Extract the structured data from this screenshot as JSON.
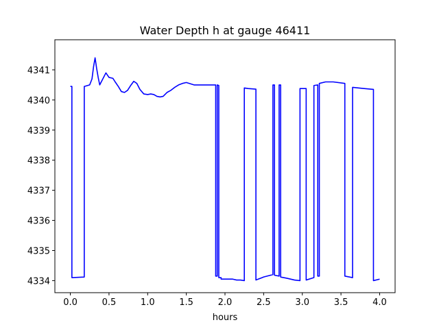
{
  "chart_data": {
    "type": "line",
    "title": "Water Depth h at gauge 46411",
    "xlabel": "hours",
    "ylabel": "",
    "xlim": [
      -0.2,
      4.2
    ],
    "ylim": [
      4333.6,
      4342.0
    ],
    "xticks": [
      0.0,
      0.5,
      1.0,
      1.5,
      2.0,
      2.5,
      3.0,
      3.5,
      4.0
    ],
    "xtick_labels": [
      "0.0",
      "0.5",
      "1.0",
      "1.5",
      "2.0",
      "2.5",
      "3.0",
      "3.5",
      "4.0"
    ],
    "yticks": [
      4334,
      4335,
      4336,
      4337,
      4338,
      4339,
      4340,
      4341
    ],
    "ytick_labels": [
      "4334",
      "4335",
      "4336",
      "4337",
      "4338",
      "4339",
      "4340",
      "4341"
    ],
    "grid": false,
    "series": [
      {
        "color": "#0000ff",
        "x": [
          0.0,
          0.02,
          0.02,
          0.18,
          0.18,
          0.25,
          0.28,
          0.3,
          0.32,
          0.34,
          0.36,
          0.38,
          0.42,
          0.46,
          0.5,
          0.55,
          0.58,
          0.62,
          0.66,
          0.7,
          0.74,
          0.78,
          0.82,
          0.86,
          0.9,
          0.95,
          1.0,
          1.04,
          1.08,
          1.12,
          1.16,
          1.2,
          1.25,
          1.3,
          1.35,
          1.4,
          1.45,
          1.5,
          1.6,
          1.7,
          1.8,
          1.88,
          1.88,
          1.9,
          1.9,
          1.92,
          1.92,
          1.95,
          1.95,
          2.05,
          2.1,
          2.15,
          2.2,
          2.25,
          2.25,
          2.3,
          2.4,
          2.4,
          2.5,
          2.62,
          2.62,
          2.64,
          2.64,
          2.7,
          2.7,
          2.72,
          2.72,
          2.8,
          2.9,
          2.97,
          2.97,
          3.05,
          3.05,
          3.15,
          3.15,
          3.2,
          3.2,
          3.22,
          3.22,
          3.3,
          3.4,
          3.55,
          3.55,
          3.65,
          3.65,
          3.8,
          3.92,
          3.92,
          4.0
        ],
        "y": [
          4340.45,
          4340.45,
          4334.1,
          4334.12,
          4340.45,
          4340.5,
          4340.7,
          4341.1,
          4341.4,
          4341.05,
          4340.75,
          4340.5,
          4340.7,
          4340.9,
          4340.75,
          4340.72,
          4340.6,
          4340.45,
          4340.28,
          4340.25,
          4340.32,
          4340.48,
          4340.62,
          4340.55,
          4340.35,
          4340.2,
          4340.18,
          4340.2,
          4340.18,
          4340.12,
          4340.1,
          4340.12,
          4340.25,
          4340.32,
          4340.42,
          4340.5,
          4340.55,
          4340.58,
          4340.5,
          4340.5,
          4340.5,
          4340.5,
          4334.15,
          4334.15,
          4340.5,
          4340.48,
          4334.1,
          4334.1,
          4334.05,
          4334.05,
          4334.05,
          4334.02,
          4334.02,
          4334.0,
          4340.4,
          4340.38,
          4340.36,
          4334.02,
          4334.12,
          4334.2,
          4340.5,
          4340.5,
          4334.18,
          4334.15,
          4340.5,
          4340.5,
          4334.12,
          4334.08,
          4334.02,
          4334.0,
          4340.38,
          4340.38,
          4334.02,
          4334.1,
          4340.48,
          4340.5,
          4334.15,
          4334.15,
          4340.55,
          4340.6,
          4340.6,
          4340.55,
          4334.15,
          4334.1,
          4340.42,
          4340.38,
          4340.35,
          4334.0,
          4334.05
        ]
      }
    ]
  }
}
